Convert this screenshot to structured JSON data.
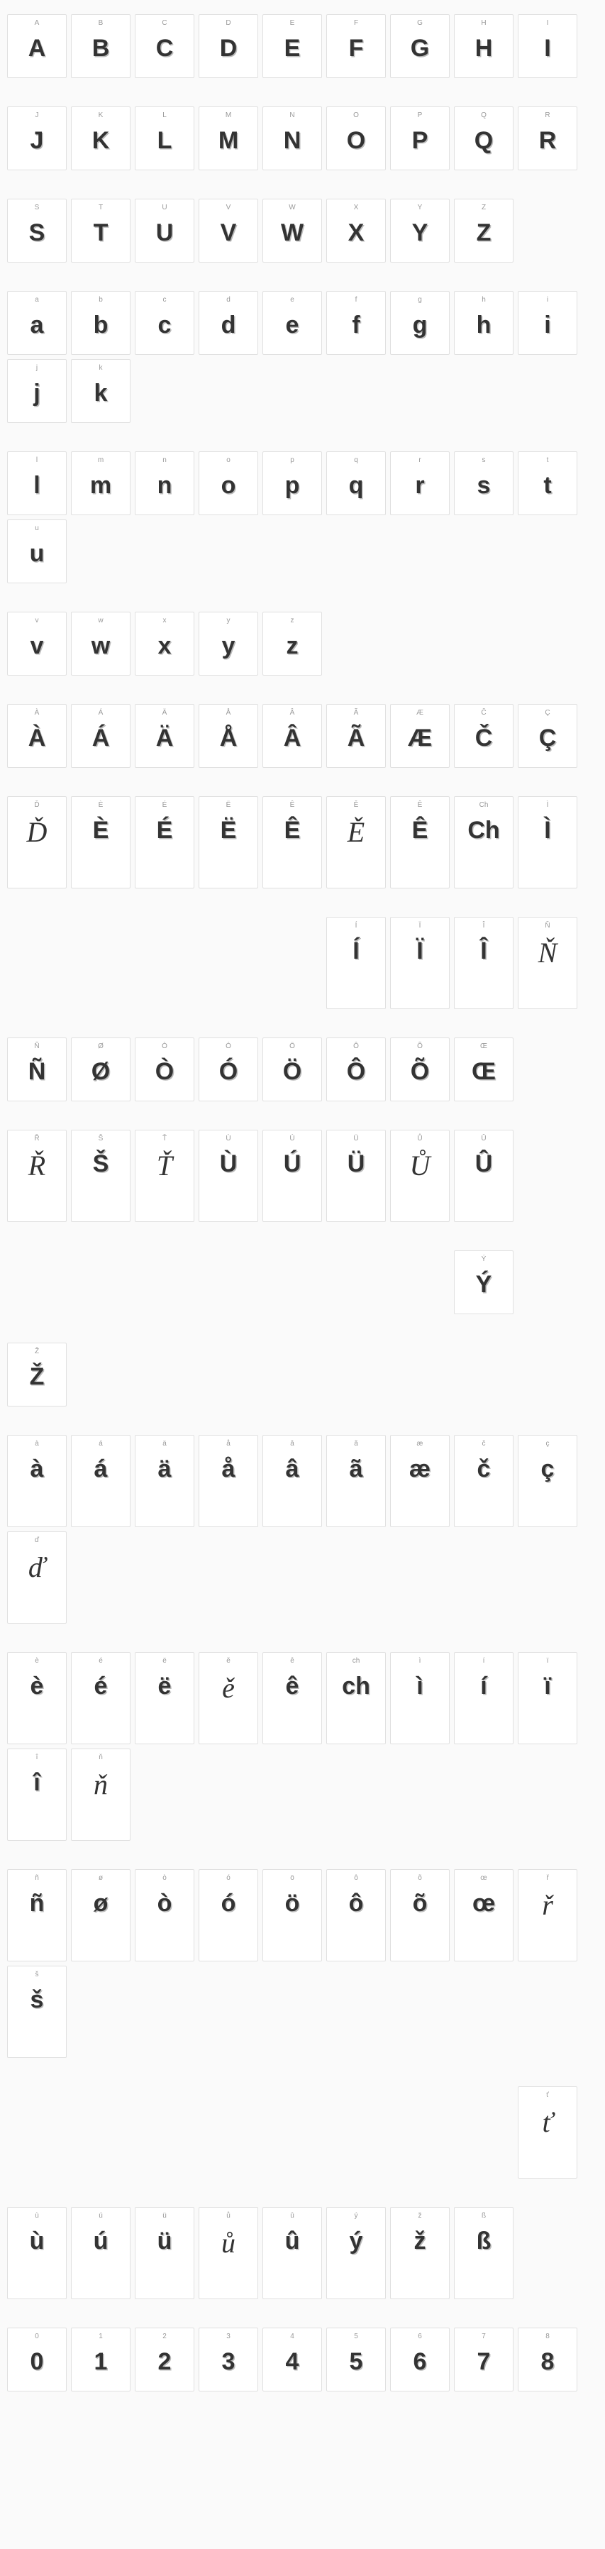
{
  "rows": [
    {
      "items": [
        {
          "l": "A",
          "g": "A"
        },
        {
          "l": "B",
          "g": "B"
        },
        {
          "l": "C",
          "g": "C"
        },
        {
          "l": "D",
          "g": "D"
        },
        {
          "l": "E",
          "g": "E"
        },
        {
          "l": "F",
          "g": "F"
        },
        {
          "l": "G",
          "g": "G"
        },
        {
          "l": "H",
          "g": "H"
        },
        {
          "l": "I",
          "g": "I"
        }
      ]
    },
    {
      "items": [
        {
          "l": "J",
          "g": "J"
        },
        {
          "l": "K",
          "g": "K"
        },
        {
          "l": "L",
          "g": "L"
        },
        {
          "l": "M",
          "g": "M"
        },
        {
          "l": "N",
          "g": "N"
        },
        {
          "l": "O",
          "g": "O"
        },
        {
          "l": "P",
          "g": "P"
        },
        {
          "l": "Q",
          "g": "Q"
        },
        {
          "l": "R",
          "g": "R"
        }
      ]
    },
    {
      "items": [
        {
          "l": "S",
          "g": "S"
        },
        {
          "l": "T",
          "g": "T"
        },
        {
          "l": "U",
          "g": "U"
        },
        {
          "l": "V",
          "g": "V"
        },
        {
          "l": "W",
          "g": "W"
        },
        {
          "l": "X",
          "g": "X"
        },
        {
          "l": "Y",
          "g": "Y"
        },
        {
          "l": "Z",
          "g": "Z"
        }
      ]
    },
    {
      "items": [
        {
          "l": "a",
          "g": "a"
        },
        {
          "l": "b",
          "g": "b"
        },
        {
          "l": "c",
          "g": "c"
        },
        {
          "l": "d",
          "g": "d"
        },
        {
          "l": "e",
          "g": "e"
        },
        {
          "l": "f",
          "g": "f"
        },
        {
          "l": "g",
          "g": "g"
        },
        {
          "l": "h",
          "g": "h"
        },
        {
          "l": "i",
          "g": "i"
        },
        {
          "l": "j",
          "g": "j"
        },
        {
          "l": "k",
          "g": "k"
        }
      ]
    },
    {
      "items": [
        {
          "l": "l",
          "g": "l"
        },
        {
          "l": "m",
          "g": "m"
        },
        {
          "l": "n",
          "g": "n"
        },
        {
          "l": "o",
          "g": "o"
        },
        {
          "l": "p",
          "g": "p"
        },
        {
          "l": "q",
          "g": "q"
        },
        {
          "l": "r",
          "g": "r"
        },
        {
          "l": "s",
          "g": "s"
        },
        {
          "l": "t",
          "g": "t"
        },
        {
          "l": "u",
          "g": "u"
        }
      ]
    },
    {
      "items": [
        {
          "l": "v",
          "g": "v"
        },
        {
          "l": "w",
          "g": "w"
        },
        {
          "l": "x",
          "g": "x"
        },
        {
          "l": "y",
          "g": "y"
        },
        {
          "l": "z",
          "g": "z"
        }
      ]
    },
    {
      "items": [
        {
          "l": "À",
          "g": "À"
        },
        {
          "l": "Á",
          "g": "Á"
        },
        {
          "l": "Ä",
          "g": "Ä"
        },
        {
          "l": "Å",
          "g": "Å"
        },
        {
          "l": "Â",
          "g": "Â"
        },
        {
          "l": "Ã",
          "g": "Ã"
        },
        {
          "l": "Æ",
          "g": "Æ"
        },
        {
          "l": "Č",
          "g": "Č"
        },
        {
          "l": "Ç",
          "g": "Ç"
        }
      ]
    },
    {
      "tall": true,
      "items": [
        {
          "l": "Ď",
          "g": "Ď",
          "script": true
        },
        {
          "l": "È",
          "g": "È"
        },
        {
          "l": "É",
          "g": "É"
        },
        {
          "l": "Ë",
          "g": "Ë"
        },
        {
          "l": "Ê",
          "g": "Ê"
        },
        {
          "l": "Ě",
          "g": "Ě",
          "script": true
        },
        {
          "l": "Ê",
          "g": "Ê"
        },
        {
          "l": "Ch",
          "g": "Ch"
        },
        {
          "l": "Ì",
          "g": "Ì"
        }
      ]
    },
    {
      "tall": true,
      "items": [
        null,
        null,
        null,
        null,
        null,
        {
          "l": "Í",
          "g": "Í"
        },
        {
          "l": "Ï",
          "g": "Ï"
        },
        {
          "l": "Î",
          "g": "Î"
        },
        {
          "l": "Ň",
          "g": "Ň",
          "script": true
        }
      ]
    },
    {
      "items": [
        {
          "l": "Ñ",
          "g": "Ñ"
        },
        {
          "l": "Ø",
          "g": "Ø"
        },
        {
          "l": "Ò",
          "g": "Ò"
        },
        {
          "l": "Ó",
          "g": "Ó"
        },
        {
          "l": "Ö",
          "g": "Ö"
        },
        {
          "l": "Ô",
          "g": "Ô"
        },
        {
          "l": "Õ",
          "g": "Õ"
        },
        {
          "l": "Œ",
          "g": "Œ"
        }
      ]
    },
    {
      "tall": true,
      "items": [
        {
          "l": "Ř",
          "g": "Ř",
          "script": true
        },
        {
          "l": "Š",
          "g": "Š"
        },
        {
          "l": "Ť",
          "g": "Ť",
          "script": true
        },
        {
          "l": "Ù",
          "g": "Ù"
        },
        {
          "l": "Ú",
          "g": "Ú"
        },
        {
          "l": "Ü",
          "g": "Ü"
        },
        {
          "l": "Ů",
          "g": "Ů",
          "script": true
        },
        {
          "l": "Û",
          "g": "Û"
        }
      ]
    },
    {
      "items": [
        null,
        null,
        null,
        null,
        null,
        null,
        null,
        {
          "l": "Ý",
          "g": "Ý"
        }
      ]
    },
    {
      "items": [
        {
          "l": "Ž",
          "g": "Ž"
        }
      ]
    },
    {
      "tall": true,
      "items": [
        {
          "l": "à",
          "g": "à"
        },
        {
          "l": "á",
          "g": "á"
        },
        {
          "l": "ä",
          "g": "ä"
        },
        {
          "l": "å",
          "g": "å"
        },
        {
          "l": "â",
          "g": "â"
        },
        {
          "l": "ã",
          "g": "ã"
        },
        {
          "l": "æ",
          "g": "æ"
        },
        {
          "l": "č",
          "g": "č"
        },
        {
          "l": "ç",
          "g": "ç"
        },
        {
          "l": "ď",
          "g": "ď",
          "script": true
        }
      ]
    },
    {
      "tall": true,
      "items": [
        {
          "l": "è",
          "g": "è"
        },
        {
          "l": "é",
          "g": "é"
        },
        {
          "l": "ë",
          "g": "ë"
        },
        {
          "l": "ě",
          "g": "ě",
          "script": true
        },
        {
          "l": "ê",
          "g": "ê"
        },
        {
          "l": "ch",
          "g": "ch"
        },
        {
          "l": "ì",
          "g": "ì"
        },
        {
          "l": "í",
          "g": "í"
        },
        {
          "l": "ï",
          "g": "ï"
        },
        {
          "l": "î",
          "g": "î"
        },
        {
          "l": "ň",
          "g": "ň",
          "script": true
        }
      ]
    },
    {
      "tall": true,
      "items": [
        {
          "l": "ñ",
          "g": "ñ"
        },
        {
          "l": "ø",
          "g": "ø"
        },
        {
          "l": "ò",
          "g": "ò"
        },
        {
          "l": "ó",
          "g": "ó"
        },
        {
          "l": "ö",
          "g": "ö"
        },
        {
          "l": "ô",
          "g": "ô"
        },
        {
          "l": "õ",
          "g": "õ"
        },
        {
          "l": "œ",
          "g": "œ"
        },
        {
          "l": "ř",
          "g": "ř",
          "script": true
        },
        {
          "l": "š",
          "g": "š"
        }
      ]
    },
    {
      "tall": true,
      "items": [
        null,
        null,
        null,
        null,
        null,
        null,
        null,
        null,
        {
          "l": "ť",
          "g": "ť",
          "script": true
        }
      ]
    },
    {
      "tall": true,
      "items": [
        {
          "l": "ù",
          "g": "ù"
        },
        {
          "l": "ú",
          "g": "ú"
        },
        {
          "l": "ü",
          "g": "ü"
        },
        {
          "l": "ů",
          "g": "ů",
          "script": true
        },
        {
          "l": "û",
          "g": "û"
        },
        {
          "l": "ý",
          "g": "ý"
        },
        {
          "l": "ž",
          "g": "ž"
        },
        {
          "l": "ß",
          "g": "ß"
        }
      ]
    },
    {
      "items": [
        {
          "l": "0",
          "g": "0"
        },
        {
          "l": "1",
          "g": "1"
        },
        {
          "l": "2",
          "g": "2"
        },
        {
          "l": "3",
          "g": "3"
        },
        {
          "l": "4",
          "g": "4"
        },
        {
          "l": "5",
          "g": "5"
        },
        {
          "l": "6",
          "g": "6"
        },
        {
          "l": "7",
          "g": "7"
        },
        {
          "l": "8",
          "g": "8"
        }
      ]
    }
  ]
}
